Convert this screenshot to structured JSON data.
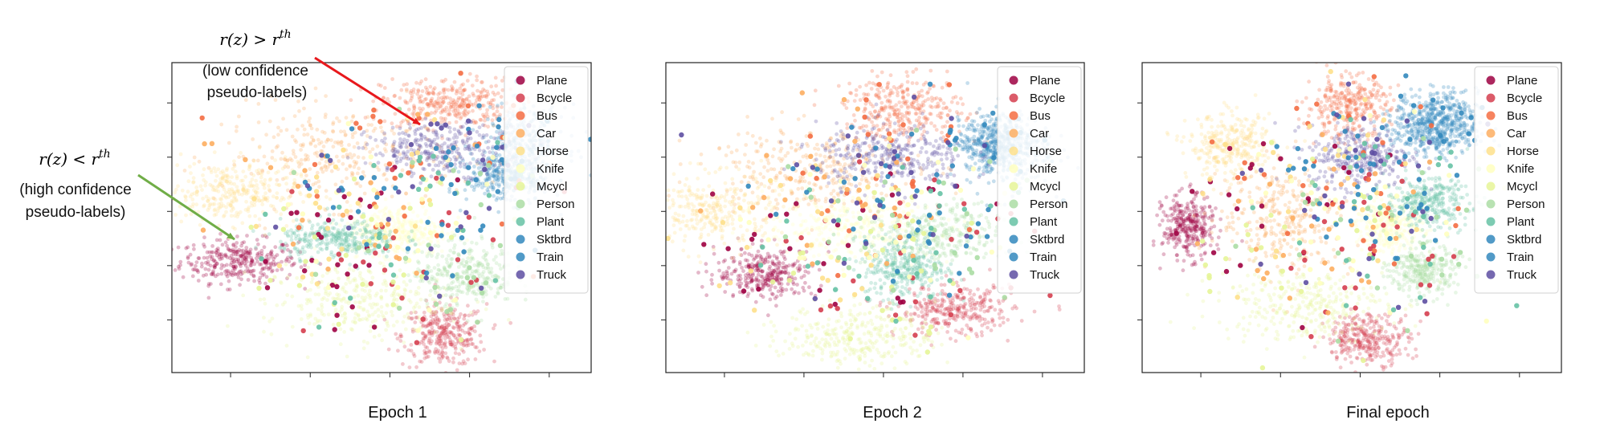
{
  "panels": [
    {
      "caption": "Epoch 1"
    },
    {
      "caption": "Epoch 2"
    },
    {
      "caption": "Final epoch"
    }
  ],
  "legend": [
    {
      "label": "Plane",
      "color": "#9e0142"
    },
    {
      "label": "Bcycle",
      "color": "#d53e4f"
    },
    {
      "label": "Bus",
      "color": "#f46d43"
    },
    {
      "label": "Car",
      "color": "#fdae61"
    },
    {
      "label": "Horse",
      "color": "#fee08b"
    },
    {
      "label": "Knife",
      "color": "#ffffbf"
    },
    {
      "label": "Mcycl",
      "color": "#e6f598"
    },
    {
      "label": "Person",
      "color": "#abdda4"
    },
    {
      "label": "Plant",
      "color": "#66c2a5"
    },
    {
      "label": "Sktbrd",
      "color": "#3288bd"
    },
    {
      "label": "Train",
      "color": "#3288bd"
    },
    {
      "label": "Truck",
      "color": "#5e4fa2"
    }
  ],
  "annotations": {
    "low": {
      "formula": "r(z) > r^th",
      "formula_base": "r(z) > r",
      "formula_sup": "th",
      "line1": "(low confidence",
      "line2": "pseudo-labels)",
      "arrow_color": "#e8181c"
    },
    "high": {
      "formula": "r(z) < r^th",
      "formula_base": "r(z) < r",
      "formula_sup": "th",
      "line1": "(high confidence",
      "line2": "pseudo-labels)",
      "arrow_color": "#70ad47"
    }
  },
  "chart_data": [
    {
      "type": "scatter",
      "title": "Epoch 1",
      "xlabel": "",
      "ylabel": "",
      "xlim": [
        0,
        100
      ],
      "ylim": [
        0,
        100
      ],
      "x_ticks": 5,
      "y_ticks": 5,
      "grid": false,
      "legend_position": "top-right",
      "clusters": [
        {
          "class": "Plane",
          "x": 16,
          "y": 36,
          "sx": 7,
          "sy": 3.5
        },
        {
          "class": "Bcycle",
          "x": 65,
          "y": 12,
          "sx": 5,
          "sy": 5
        },
        {
          "class": "Bus",
          "x": 66,
          "y": 87,
          "sx": 8,
          "sy": 4
        },
        {
          "class": "Car",
          "x": 40,
          "y": 70,
          "sx": 14,
          "sy": 8
        },
        {
          "class": "Horse",
          "x": 14,
          "y": 58,
          "sx": 8,
          "sy": 5
        },
        {
          "class": "Knife",
          "x": 54,
          "y": 46,
          "sx": 6,
          "sy": 4
        },
        {
          "class": "Mcycl",
          "x": 44,
          "y": 23,
          "sx": 11,
          "sy": 6
        },
        {
          "class": "Person",
          "x": 70,
          "y": 32,
          "sx": 6,
          "sy": 5
        },
        {
          "class": "Plant",
          "x": 40,
          "y": 43,
          "sx": 7,
          "sy": 3
        },
        {
          "class": "Sktbrd",
          "x": 84,
          "y": 74,
          "sx": 5,
          "sy": 6
        },
        {
          "class": "Train",
          "x": 80,
          "y": 63,
          "sx": 5,
          "sy": 4
        },
        {
          "class": "Truck",
          "x": 65,
          "y": 72,
          "sx": 9,
          "sy": 4
        }
      ]
    },
    {
      "type": "scatter",
      "title": "Epoch 2",
      "xlabel": "",
      "ylabel": "",
      "xlim": [
        0,
        100
      ],
      "ylim": [
        0,
        100
      ],
      "x_ticks": 5,
      "y_ticks": 5,
      "grid": false,
      "legend_position": "top-right",
      "clusters": [
        {
          "class": "Plane",
          "x": 24,
          "y": 32,
          "sx": 6,
          "sy": 4
        },
        {
          "class": "Bcycle",
          "x": 69,
          "y": 20,
          "sx": 7,
          "sy": 4
        },
        {
          "class": "Bus",
          "x": 57,
          "y": 85,
          "sx": 7,
          "sy": 5
        },
        {
          "class": "Car",
          "x": 34,
          "y": 66,
          "sx": 13,
          "sy": 7
        },
        {
          "class": "Horse",
          "x": 11,
          "y": 52,
          "sx": 8,
          "sy": 6
        },
        {
          "class": "Knife",
          "x": 44,
          "y": 47,
          "sx": 10,
          "sy": 5
        },
        {
          "class": "Mcycl",
          "x": 46,
          "y": 12,
          "sx": 9,
          "sy": 5
        },
        {
          "class": "Person",
          "x": 64,
          "y": 44,
          "sx": 8,
          "sy": 5
        },
        {
          "class": "Plant",
          "x": 57,
          "y": 34,
          "sx": 5,
          "sy": 5
        },
        {
          "class": "Sktbrd",
          "x": 82,
          "y": 72,
          "sx": 5,
          "sy": 6
        },
        {
          "class": "Train",
          "x": 78,
          "y": 74,
          "sx": 4,
          "sy": 4
        },
        {
          "class": "Truck",
          "x": 54,
          "y": 70,
          "sx": 9,
          "sy": 5
        }
      ]
    },
    {
      "type": "scatter",
      "title": "Final epoch",
      "xlabel": "",
      "ylabel": "",
      "xlim": [
        0,
        100
      ],
      "ylim": [
        0,
        100
      ],
      "x_ticks": 5,
      "y_ticks": 5,
      "grid": false,
      "legend_position": "top-right",
      "clusters": [
        {
          "class": "Plane",
          "x": 11,
          "y": 47,
          "sx": 3,
          "sy": 5
        },
        {
          "class": "Bcycle",
          "x": 54,
          "y": 11,
          "sx": 5,
          "sy": 4
        },
        {
          "class": "Bus",
          "x": 49,
          "y": 86,
          "sx": 5,
          "sy": 5
        },
        {
          "class": "Car",
          "x": 34,
          "y": 50,
          "sx": 8,
          "sy": 9
        },
        {
          "class": "Horse",
          "x": 21,
          "y": 73,
          "sx": 5,
          "sy": 5
        },
        {
          "class": "Knife",
          "x": 59,
          "y": 47,
          "sx": 4,
          "sy": 4
        },
        {
          "class": "Mcycl",
          "x": 38,
          "y": 22,
          "sx": 10,
          "sy": 6
        },
        {
          "class": "Person",
          "x": 67,
          "y": 33,
          "sx": 4,
          "sy": 4
        },
        {
          "class": "Plant",
          "x": 68,
          "y": 55,
          "sx": 5,
          "sy": 4
        },
        {
          "class": "Sktbrd",
          "x": 70,
          "y": 80,
          "sx": 5,
          "sy": 5
        },
        {
          "class": "Train",
          "x": 70,
          "y": 80,
          "sx": 5,
          "sy": 5
        },
        {
          "class": "Truck",
          "x": 52,
          "y": 70,
          "sx": 6,
          "sy": 5
        }
      ]
    }
  ]
}
